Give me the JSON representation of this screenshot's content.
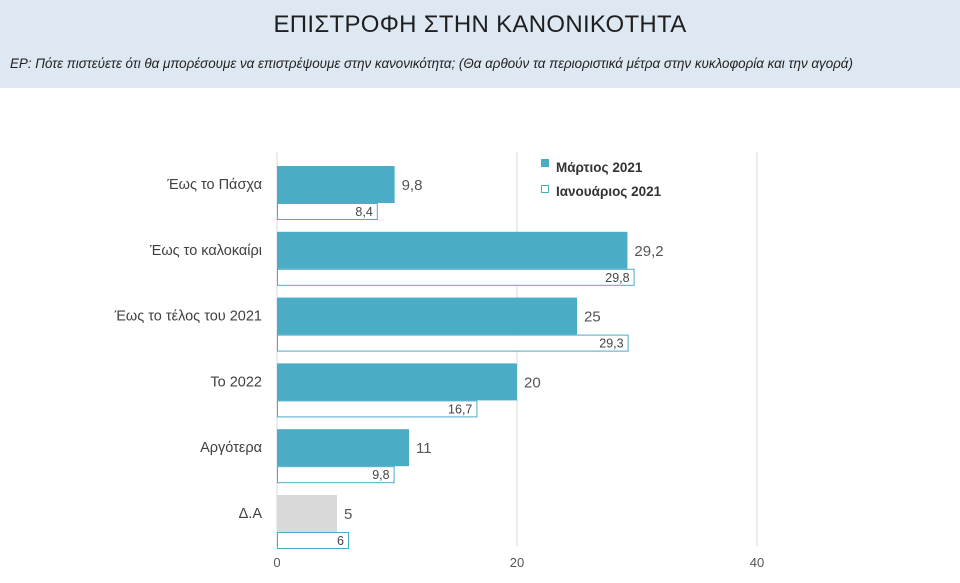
{
  "header": {
    "title": "ΕΠΙΣΤΡΟΦΗ ΣΤΗΝ ΚΑΝΟΝΙΚΟΤΗΤΑ",
    "question": "ΕΡ:  Πότε πιστεύετε ότι θα μπορέσουμε να επιστρέψουμε στην κανονικότητα; (Θα αρθούν τα περιοριστικά μέτρα στην κυκλοφορία και την αγορά)"
  },
  "colors": {
    "march_fill": "#4bacc6",
    "january_outline": "#4bacc6",
    "da_fill": "#d9d9d9",
    "header_bg": "#dde8f3",
    "grid": "#d9d9d9"
  },
  "chart_data": {
    "type": "bar",
    "orientation": "horizontal",
    "categories": [
      "Έως το Πάσχα",
      "Έως το καλοκαίρι",
      "Έως το τέλος του 2021",
      "Το 2022",
      "Αργότερα",
      "Δ.Α"
    ],
    "series": [
      {
        "name": "Μάρτιος 2021",
        "style": "filled",
        "values": [
          9.8,
          29.2,
          25,
          20,
          11,
          5
        ],
        "labels": [
          "9,8",
          "29,2",
          "25",
          "20",
          "11",
          "5"
        ]
      },
      {
        "name": "Ιανουάριος 2021",
        "style": "outline",
        "values": [
          8.4,
          29.8,
          29.3,
          16.7,
          9.8,
          6
        ],
        "labels": [
          "8,4",
          "29,8",
          "29,3",
          "16,7",
          "9,8",
          "6"
        ]
      }
    ],
    "xlim": [
      0,
      40
    ],
    "xticks": [
      "0",
      "20",
      "40"
    ],
    "grid": true,
    "legend_position": "top-right"
  }
}
